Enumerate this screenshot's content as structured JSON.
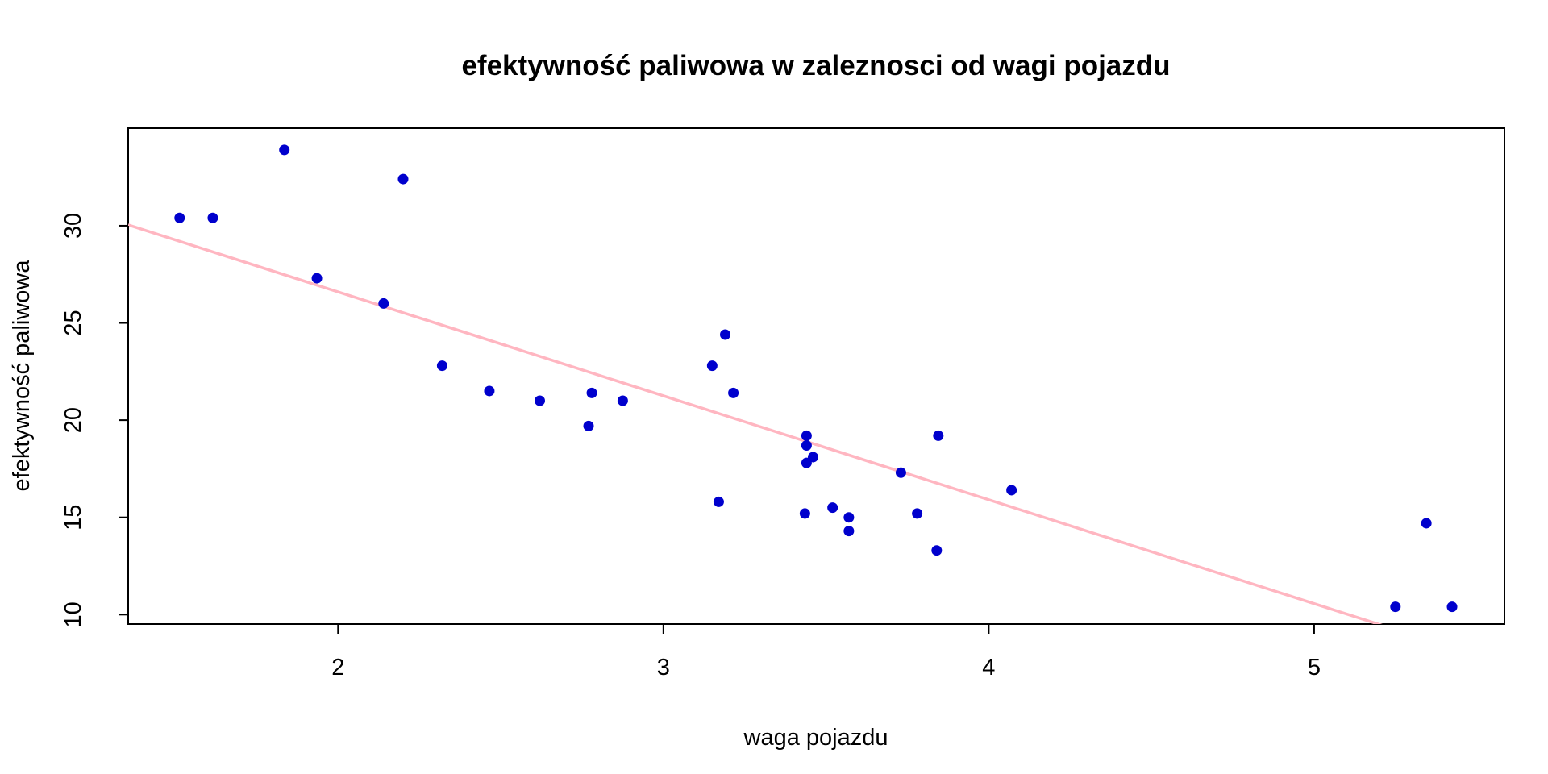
{
  "chart_data": {
    "type": "scatter",
    "title": "efektywność paliwowa w zaleznosci od wagi pojazdu",
    "xlabel": "waga pojazdu",
    "ylabel": "efektywność paliwowa",
    "xlim": [
      1.355,
      5.585
    ],
    "ylim": [
      9.515,
      35.015
    ],
    "xticks": [
      2,
      3,
      4,
      5
    ],
    "yticks": [
      10,
      15,
      20,
      25,
      30
    ],
    "grid": false,
    "point_color": "#0000CD",
    "line_color": "#FFB6C1",
    "points": [
      {
        "x": 2.62,
        "y": 21.0
      },
      {
        "x": 2.875,
        "y": 21.0
      },
      {
        "x": 2.32,
        "y": 22.8
      },
      {
        "x": 3.215,
        "y": 21.4
      },
      {
        "x": 3.44,
        "y": 18.7
      },
      {
        "x": 3.46,
        "y": 18.1
      },
      {
        "x": 3.57,
        "y": 14.3
      },
      {
        "x": 3.19,
        "y": 24.4
      },
      {
        "x": 3.15,
        "y": 22.8
      },
      {
        "x": 3.44,
        "y": 19.2
      },
      {
        "x": 3.44,
        "y": 17.8
      },
      {
        "x": 4.07,
        "y": 16.4
      },
      {
        "x": 3.73,
        "y": 17.3
      },
      {
        "x": 3.78,
        "y": 15.2
      },
      {
        "x": 5.25,
        "y": 10.4
      },
      {
        "x": 5.424,
        "y": 10.4
      },
      {
        "x": 5.345,
        "y": 14.7
      },
      {
        "x": 2.2,
        "y": 32.4
      },
      {
        "x": 1.615,
        "y": 30.4
      },
      {
        "x": 1.835,
        "y": 33.9
      },
      {
        "x": 2.465,
        "y": 21.5
      },
      {
        "x": 3.52,
        "y": 15.5
      },
      {
        "x": 3.435,
        "y": 15.2
      },
      {
        "x": 3.84,
        "y": 13.3
      },
      {
        "x": 3.845,
        "y": 19.2
      },
      {
        "x": 1.935,
        "y": 27.3
      },
      {
        "x": 2.14,
        "y": 26.0
      },
      {
        "x": 1.513,
        "y": 30.4
      },
      {
        "x": 3.17,
        "y": 15.8
      },
      {
        "x": 2.77,
        "y": 19.7
      },
      {
        "x": 3.57,
        "y": 15.0
      },
      {
        "x": 2.78,
        "y": 21.4
      }
    ],
    "regression_line": {
      "intercept": 37.285,
      "slope": -5.344
    }
  }
}
